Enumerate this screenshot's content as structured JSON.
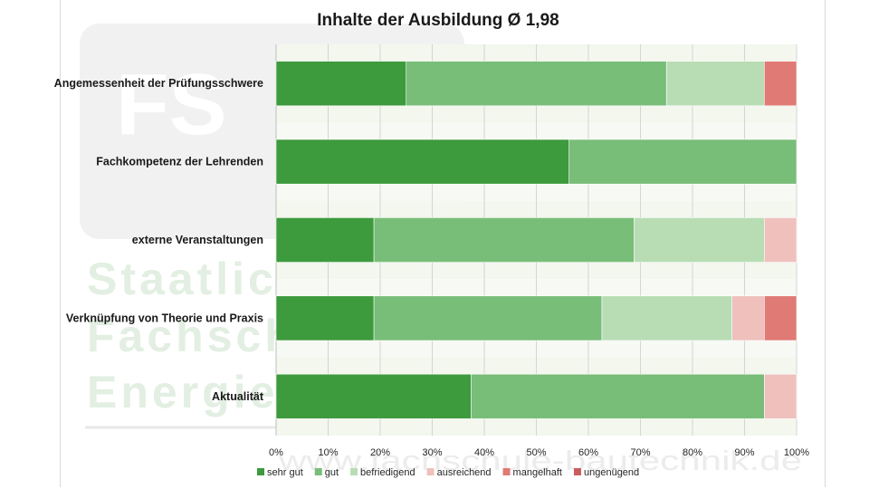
{
  "chart_data": {
    "type": "bar",
    "orientation": "horizontal",
    "stacked": "percent",
    "title": "Inhalte der Ausbildung Ø 1,98",
    "categories": [
      "Angemessenheit der Prüfungsschwere",
      "Fachkompetenz der Lehrenden",
      "externe Veranstaltungen",
      "Verknüpfung von Theorie und Praxis",
      "Aktualität"
    ],
    "series": [
      {
        "name": "sehr gut",
        "color": "#3d9a3d",
        "values": [
          25,
          56.3,
          18.8,
          18.8,
          37.5
        ]
      },
      {
        "name": "gut",
        "color": "#78bd78",
        "values": [
          50,
          43.7,
          50,
          43.8,
          56.3
        ]
      },
      {
        "name": "befriedigend",
        "color": "#b8ddb5",
        "values": [
          18.8,
          0,
          25,
          25,
          0
        ]
      },
      {
        "name": "ausreichend",
        "color": "#efc0bc",
        "values": [
          0,
          0,
          6.2,
          6.2,
          6.2
        ]
      },
      {
        "name": "mangelhaft",
        "color": "#e07a74",
        "values": [
          6.2,
          0,
          0,
          6.2,
          0
        ]
      },
      {
        "name": "ungenügend",
        "color": "#c95d5d",
        "values": [
          0,
          0,
          0,
          0,
          0
        ]
      }
    ],
    "xlim": [
      0,
      100
    ],
    "xticks": [
      "0%",
      "10%",
      "20%",
      "30%",
      "40%",
      "50%",
      "60%",
      "70%",
      "80%",
      "90%",
      "100%"
    ],
    "grid": true,
    "legend": "bottom"
  },
  "watermark": {
    "logo_text": "FS",
    "lines": [
      "Staatlic",
      "Fachsch",
      "Energie"
    ],
    "url": "www.fachschule-bautechnik.de"
  }
}
